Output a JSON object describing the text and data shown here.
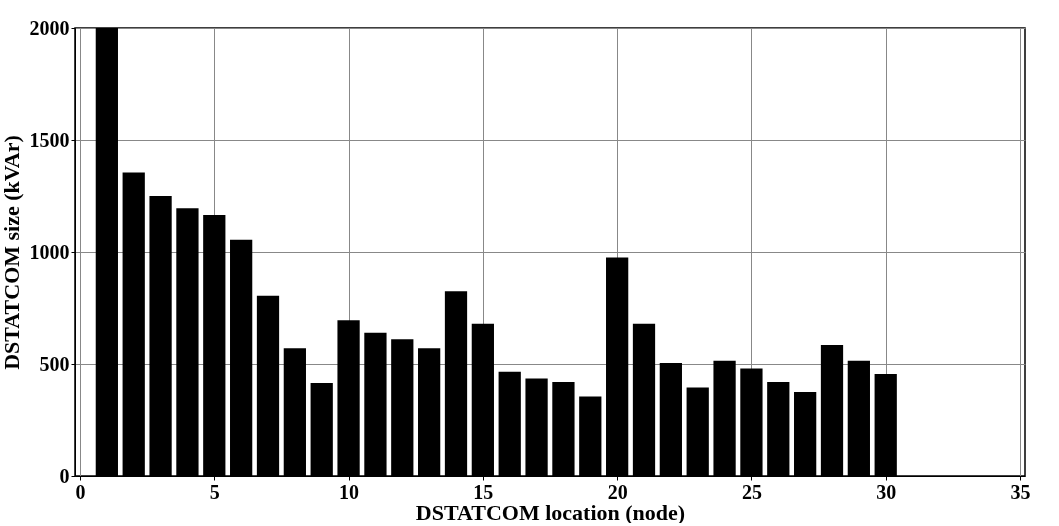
{
  "chart_data": {
    "type": "bar",
    "xlabel": "DSTATCOM location (node)",
    "ylabel": "DSTATCOM size (kVAr)",
    "x": [
      1,
      2,
      3,
      4,
      5,
      6,
      7,
      8,
      9,
      10,
      11,
      12,
      13,
      14,
      15,
      16,
      17,
      18,
      19,
      20,
      21,
      22,
      23,
      24,
      25,
      26,
      27,
      28,
      29,
      30
    ],
    "values": [
      2000,
      1355,
      1250,
      1195,
      1165,
      1055,
      805,
      570,
      415,
      695,
      640,
      610,
      570,
      825,
      680,
      465,
      435,
      420,
      355,
      975,
      680,
      505,
      395,
      515,
      480,
      420,
      375,
      585,
      515,
      455
    ],
    "color": "#000000",
    "xlim": [
      0,
      35
    ],
    "xticks": [
      0,
      5,
      10,
      15,
      20,
      25,
      30,
      35
    ],
    "ylim": [
      0,
      2000
    ],
    "yticks": [
      0,
      500,
      1000,
      1500,
      2000
    ],
    "grid": true
  }
}
